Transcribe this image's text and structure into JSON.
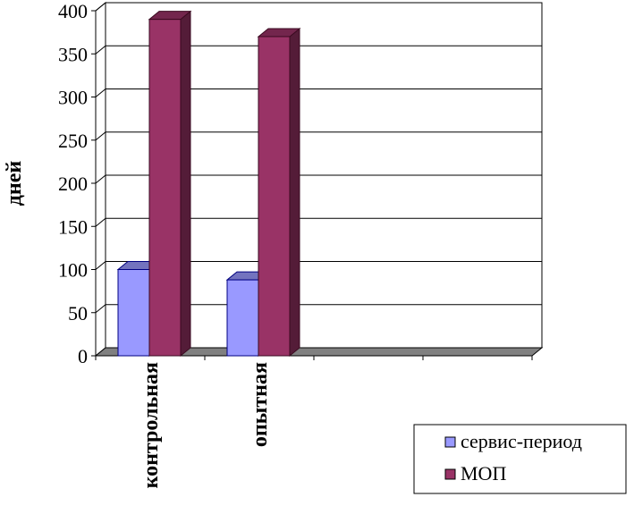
{
  "chart_data": {
    "type": "bar",
    "style": "3d-clustered-column",
    "title": "",
    "xlabel": "",
    "ylabel": "дней",
    "ylim": [
      0,
      400
    ],
    "yticks": [
      0,
      50,
      100,
      150,
      200,
      250,
      300,
      350,
      400
    ],
    "grid": true,
    "categories": [
      "контрольная",
      "опытная"
    ],
    "series": [
      {
        "name": "сервис-период",
        "values": [
          100,
          88
        ],
        "color": "#9999FF"
      },
      {
        "name": "МОП",
        "values": [
          390,
          370
        ],
        "color": "#993366"
      }
    ],
    "legend": {
      "position": "bottom-right"
    },
    "colors": {
      "floor": "#808080"
    }
  }
}
